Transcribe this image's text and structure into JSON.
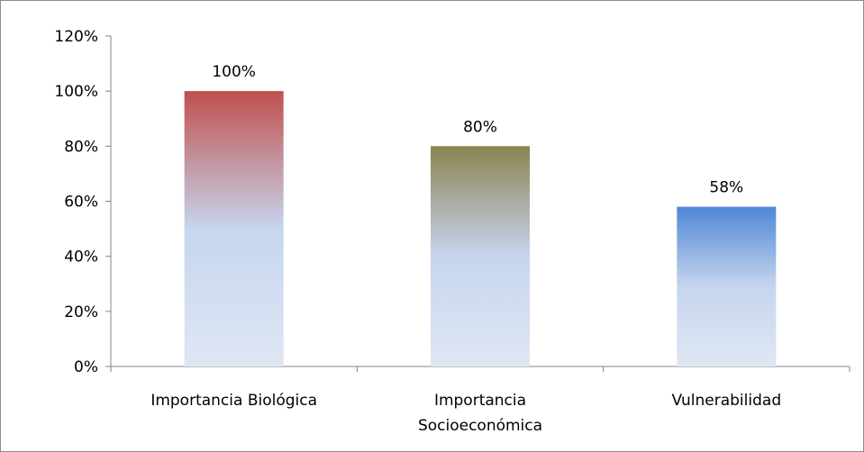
{
  "chart_data": {
    "type": "bar",
    "title": "",
    "xlabel": "",
    "ylabel": "",
    "categories": [
      "Importancia Biológica",
      "Importancia Socioeconómica",
      "Vulnerabilidad"
    ],
    "category_lines": [
      [
        "Importancia Biológica"
      ],
      [
        "Importancia",
        "Socioeconómica"
      ],
      [
        "Vulnerabilidad"
      ]
    ],
    "values": [
      100,
      80,
      58
    ],
    "data_labels": [
      "100%",
      "80%",
      "58%"
    ],
    "ylim": [
      0,
      120
    ],
    "y_ticks": [
      0,
      20,
      40,
      60,
      80,
      100,
      120
    ],
    "y_tick_labels": [
      "0%",
      "20%",
      "40%",
      "60%",
      "80%",
      "100%",
      "120%"
    ],
    "bar_colors": [
      {
        "top": "#c0504d",
        "bottom": "#dfe7f4"
      },
      {
        "top": "#8b8352",
        "bottom": "#dfe7f4"
      },
      {
        "top": "#4f86d6",
        "bottom": "#dfe7f4"
      }
    ],
    "grid": false,
    "legend": "none"
  }
}
